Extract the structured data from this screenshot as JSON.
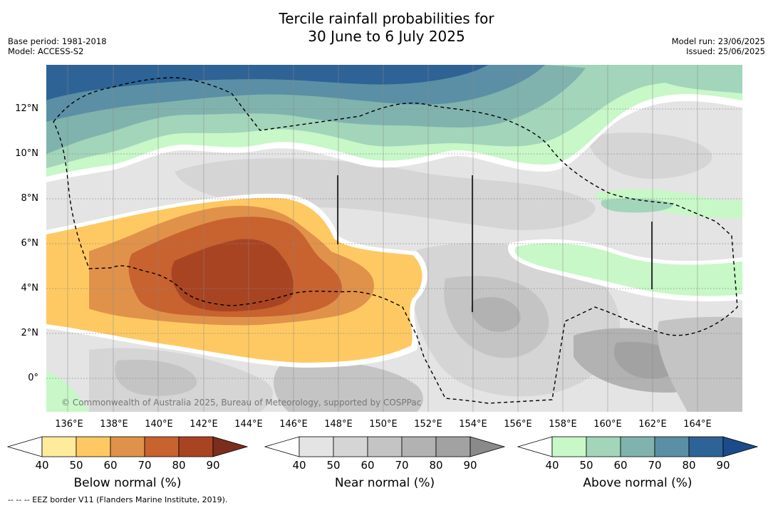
{
  "title": {
    "line1": "Tercile rainfall probabilities for",
    "line2": "30 June to 6 July 2025"
  },
  "meta_left": {
    "base_period": "Base period: 1981-2018",
    "model": "Model: ACCESS-S2"
  },
  "meta_right": {
    "model_run": "Model run: 23/06/2025",
    "issued": "Issued: 25/06/2025"
  },
  "map": {
    "lat_labels": [
      "12°N",
      "10°N",
      "8°N",
      "6°N",
      "4°N",
      "2°N",
      "0°"
    ],
    "lon_labels": [
      "136°E",
      "138°E",
      "140°E",
      "142°E",
      "144°E",
      "146°E",
      "148°E",
      "150°E",
      "152°E",
      "154°E",
      "156°E",
      "158°E",
      "160°E",
      "162°E",
      "164°E"
    ],
    "credit": "© Commonwealth of Australia 2025, Bureau of Meteorology, supported by COSPPac"
  },
  "colorbars": [
    {
      "title": "Below normal (%)",
      "ticks": [
        "40",
        "50",
        "60",
        "70",
        "80",
        "90"
      ],
      "colors": [
        "#ffffff",
        "#ffeb9c",
        "#fec962",
        "#e0924a",
        "#c8622f",
        "#a94423",
        "#7c2e1c"
      ]
    },
    {
      "title": "Near normal (%)",
      "ticks": [
        "40",
        "50",
        "60",
        "70",
        "80",
        "90"
      ],
      "colors": [
        "#ffffff",
        "#e4e4e4",
        "#d5d5d5",
        "#c4c4c4",
        "#b2b2b2",
        "#a2a2a2",
        "#8a8a8a"
      ]
    },
    {
      "title": "Above normal (%)",
      "ticks": [
        "40",
        "50",
        "60",
        "70",
        "80",
        "90"
      ],
      "colors": [
        "#ffffff",
        "#c8f7c8",
        "#a2d5b9",
        "#80b3ad",
        "#5b8fa5",
        "#2e6396",
        "#1b4c8a"
      ]
    }
  ],
  "footnote": "--  --  -- EEZ border V11 (Flanders Marine Institute, 2019)."
}
